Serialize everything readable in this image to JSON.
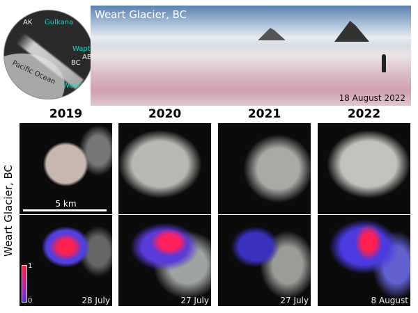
{
  "map": {
    "labels": {
      "ak": "AK",
      "gulkana": "Gulkana",
      "wapta": "Wapta",
      "ab": "AB",
      "bc": "BC",
      "pacific": "Pacific Ocean",
      "weart": "Weart"
    }
  },
  "photo": {
    "title": "Weart Glacier, BC",
    "date": "18 August 2022"
  },
  "years": [
    "2019",
    "2020",
    "2021",
    "2022"
  ],
  "row_label": "Weart Glacier, BC",
  "scale": "5 km",
  "colorbar": {
    "max": "1",
    "min": "0",
    "colors": [
      "#ff1a3a",
      "#c020a0",
      "#6030e0"
    ]
  },
  "dates": [
    "28 July",
    "27 July",
    "27 July",
    "8 August"
  ]
}
